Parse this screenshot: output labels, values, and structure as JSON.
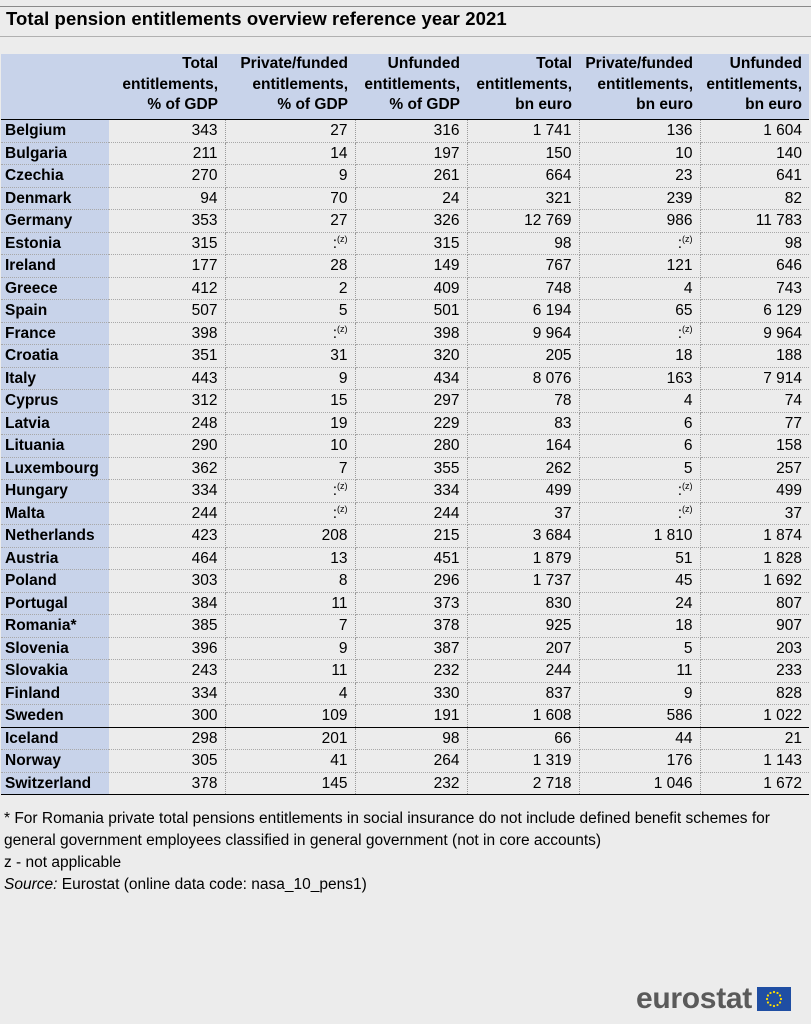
{
  "title": "Total pension entitlements overview reference year 2021",
  "chart_data": {
    "type": "table",
    "columns": [
      [
        "",
        "",
        ""
      ],
      [
        "Total",
        "entitlements,",
        "% of GDP"
      ],
      [
        "Private/funded",
        "entitlements,",
        "% of GDP"
      ],
      [
        "Unfunded",
        "entitlements,",
        "% of GDP"
      ],
      [
        "Total",
        "entitlements,",
        "bn euro"
      ],
      [
        "Private/funded",
        "entitlements,",
        "bn euro"
      ],
      [
        "Unfunded",
        "entitlements,",
        "bn euro"
      ]
    ],
    "rows": [
      [
        "Belgium",
        "343",
        "27",
        "316",
        "1 741",
        "136",
        "1 604"
      ],
      [
        "Bulgaria",
        "211",
        "14",
        "197",
        "150",
        "10",
        "140"
      ],
      [
        "Czechia",
        "270",
        "9",
        "261",
        "664",
        "23",
        "641"
      ],
      [
        "Denmark",
        "94",
        "70",
        "24",
        "321",
        "239",
        "82"
      ],
      [
        "Germany",
        "353",
        "27",
        "326",
        "12 769",
        "986",
        "11 783"
      ],
      [
        "Estonia",
        "315",
        ":(z)",
        "315",
        "98",
        ":(z)",
        "98"
      ],
      [
        "Ireland",
        "177",
        "28",
        "149",
        "767",
        "121",
        "646"
      ],
      [
        "Greece",
        "412",
        "2",
        "409",
        "748",
        "4",
        "743"
      ],
      [
        "Spain",
        "507",
        "5",
        "501",
        "6 194",
        "65",
        "6 129"
      ],
      [
        "France",
        "398",
        ":(z)",
        "398",
        "9 964",
        ":(z)",
        "9 964"
      ],
      [
        "Croatia",
        "351",
        "31",
        "320",
        "205",
        "18",
        "188"
      ],
      [
        "Italy",
        "443",
        "9",
        "434",
        "8 076",
        "163",
        "7 914"
      ],
      [
        "Cyprus",
        "312",
        "15",
        "297",
        "78",
        "4",
        "74"
      ],
      [
        "Latvia",
        "248",
        "19",
        "229",
        "83",
        "6",
        "77"
      ],
      [
        "Lituania",
        "290",
        "10",
        "280",
        "164",
        "6",
        "158"
      ],
      [
        "Luxembourg",
        "362",
        "7",
        "355",
        "262",
        "5",
        "257"
      ],
      [
        "Hungary",
        "334",
        ":(z)",
        "334",
        "499",
        ":(z)",
        "499"
      ],
      [
        "Malta",
        "244",
        ":(z)",
        "244",
        "37",
        ":(z)",
        "37"
      ],
      [
        "Netherlands",
        "423",
        "208",
        "215",
        "3 684",
        "1 810",
        "1 874"
      ],
      [
        "Austria",
        "464",
        "13",
        "451",
        "1 879",
        "51",
        "1 828"
      ],
      [
        "Poland",
        "303",
        "8",
        "296",
        "1 737",
        "45",
        "1 692"
      ],
      [
        "Portugal",
        "384",
        "11",
        "373",
        "830",
        "24",
        "807"
      ],
      [
        "Romania*",
        "385",
        "7",
        "378",
        "925",
        "18",
        "907"
      ],
      [
        "Slovenia",
        "396",
        "9",
        "387",
        "207",
        "5",
        "203"
      ],
      [
        "Slovakia",
        "243",
        "11",
        "232",
        "244",
        "11",
        "233"
      ],
      [
        "Finland",
        "334",
        "4",
        "330",
        "837",
        "9",
        "828"
      ],
      [
        "Sweden",
        "300",
        "109",
        "191",
        "1 608",
        "586",
        "1 022"
      ],
      [
        "Iceland",
        "298",
        "201",
        "98",
        "66",
        "44",
        "21"
      ],
      [
        "Norway",
        "305",
        "41",
        "264",
        "1 319",
        "176",
        "1 143"
      ],
      [
        "Switzerland",
        "378",
        "145",
        "232",
        "2 718",
        "1 046",
        "1 672"
      ]
    ],
    "group_break_before_row": 27
  },
  "notes": {
    "footnote": "* For Romania private total pensions entitlements in social insurance do not include defined benefit schemes for general government employees classified in general government (not in core accounts)",
    "z_note": "z - not applicable",
    "source_label": "Source:",
    "source_text": "Eurostat (online data code: nasa_10_pens1)"
  },
  "logo": {
    "text": "eurostat",
    "flag_color": "#1f4ea3",
    "star_color": "#ffdd00"
  }
}
